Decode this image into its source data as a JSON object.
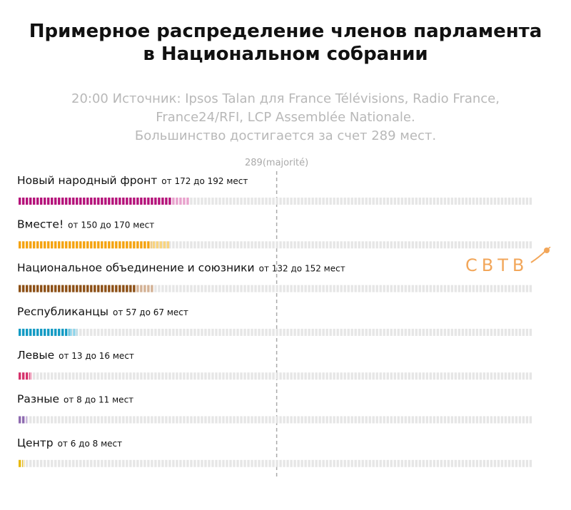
{
  "title": [
    "Примерное распределение членов парламента",
    "в Национальном собрании"
  ],
  "subtitle": [
    "20:00 Источник: Ipsos Talan для France Télévisions, Radio France,",
    "France24/RFI, LCP Assemblée Nationale.",
    "Большинство достигается за счет 289 мест."
  ],
  "logo": {
    "text": "СВТВ",
    "icon": "satellite-icon",
    "color": "#f2a659"
  },
  "chart_data": {
    "type": "bar",
    "orientation": "horizontal",
    "total_seats": 577,
    "majority": {
      "value": 289,
      "label": "289(majorité)"
    },
    "grid": false,
    "legend": "none",
    "colors": {
      "empty": "#e6e6e6",
      "majority_line": "#aaaaaa"
    },
    "parties": [
      {
        "name": "Новый народный фронт",
        "range_label": "от 172 до 192 мест",
        "low": 172,
        "high": 192,
        "color": "#b5127a",
        "light": "#e9a2cd"
      },
      {
        "name": "Вместе!",
        "range_label": "от 150 до 170 мест",
        "low": 150,
        "high": 170,
        "color": "#f5a30e",
        "light": "#f9d47e"
      },
      {
        "name": "Национальное объединение и союзники",
        "range_label": "от 132 до 152 мест",
        "low": 132,
        "high": 152,
        "color": "#8d5016",
        "light": "#d4b295"
      },
      {
        "name": "Республиканцы",
        "range_label": "от 57 до 67 мест",
        "low": 57,
        "high": 67,
        "color": "#139bc4",
        "light": "#8ed4ea"
      },
      {
        "name": "Левые",
        "range_label": "от 13 до 16 мест",
        "low": 13,
        "high": 16,
        "color": "#d6336c",
        "light": "#f3a6c1"
      },
      {
        "name": "Разные",
        "range_label": "от 8 до 11 мест",
        "low": 8,
        "high": 11,
        "color": "#8e6bb0",
        "light": "#c9b5dd"
      },
      {
        "name": "Центр",
        "range_label": "от 6 до 8 мест",
        "low": 6,
        "high": 8,
        "color": "#e8b90c",
        "light": "#f5dd86"
      }
    ]
  }
}
